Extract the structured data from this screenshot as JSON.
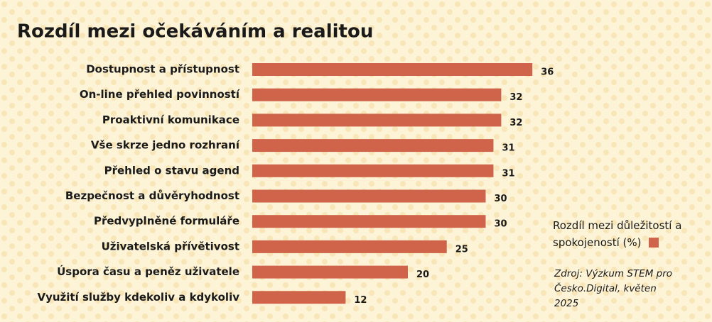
{
  "chart_data": {
    "type": "bar",
    "title": "Rozdíl mezi očekáváním a realitou",
    "categories": [
      "Dostupnost a přístupnost",
      "On-line přehled povinností",
      "Proaktivní komunikace",
      "Vše skrze jedno rozhraní",
      "Přehled o stavu agend",
      "Bezpečnost a důvěryhodnost",
      "Předvyplněné formuláře",
      "Uživatelská přívětivost",
      "Úspora času a peněz uživatele",
      "Využití služby kdekoliv a kdykoliv"
    ],
    "series": [
      {
        "name": "Rozdíl mezi důležitostí a spokojeností (%)",
        "color": "#d0644a",
        "values": [
          36,
          32,
          32,
          31,
          31,
          30,
          30,
          25,
          20,
          12
        ]
      }
    ],
    "source": "Zdroj: Výzkum STEM pro Česko.Digital, květen 2025"
  }
}
